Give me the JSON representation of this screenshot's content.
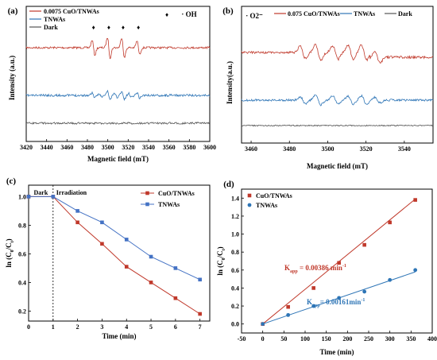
{
  "colors": {
    "red": "#c0392b",
    "blue": "#2e75b6",
    "gray": "#555555",
    "line_red": "#c0392b",
    "line_blue": "#4472c4"
  },
  "chart_data": [
    {
      "panel": "(a)",
      "type": "line",
      "xlabel": "Magnetic field (mT)",
      "ylabel": "Intensity (a.u.)",
      "xlim": [
        3420,
        3600
      ],
      "xticks": [
        3420,
        3440,
        3460,
        3480,
        3500,
        3520,
        3540,
        3560,
        3580,
        3600
      ],
      "annotation": "· OH",
      "peak_markers_x": [
        3486,
        3501,
        3515,
        3530
      ],
      "series": [
        {
          "name": "0.0075 CuO/TNWAs",
          "color": "#c0392b",
          "signal": "DMPO-·OH quartet, strong",
          "peaks_x": [
            3486,
            3501,
            3515,
            3530
          ]
        },
        {
          "name": "TNWAs",
          "color": "#2e75b6",
          "signal": "DMPO-·OH quartet, weak"
        },
        {
          "name": "Dark",
          "color": "#555555",
          "signal": "flat baseline"
        }
      ]
    },
    {
      "panel": "(b)",
      "type": "line",
      "xlabel": "Magnetic field (mT)",
      "ylabel": "Intensity(a.u.)",
      "xlim": [
        3455,
        3555
      ],
      "xticks": [
        3460,
        3480,
        3500,
        3520,
        3540
      ],
      "annotation": "· O2⁻",
      "series": [
        {
          "name": "0.075 CuO/TNWAs",
          "color": "#c0392b",
          "signal": "DMPO-·O2⁻ sextet, strong"
        },
        {
          "name": "TNWAs",
          "color": "#2e75b6",
          "signal": "DMPO-·O2⁻ sextet, weak"
        },
        {
          "name": "Dark",
          "color": "#555555",
          "signal": "flat baseline"
        }
      ]
    },
    {
      "panel": "(c)",
      "type": "line",
      "xlabel": "Time (min)",
      "ylabel": "ln (C0/Ct)",
      "xlim": [
        0,
        7.4
      ],
      "ylim": [
        0.13,
        1.08
      ],
      "xticks": [
        0,
        1,
        2,
        3,
        4,
        5,
        6,
        7
      ],
      "yticks": [
        0.2,
        0.4,
        0.6,
        0.8,
        1.0
      ],
      "region_labels": [
        "Dark",
        "Irradiation"
      ],
      "divider_x": 1,
      "legend": "top-right",
      "series": [
        {
          "name": "CuO/TNWAs",
          "color": "#c0392b",
          "marker": "square",
          "x": [
            0,
            1,
            2,
            3,
            4,
            5,
            6,
            7
          ],
          "y": [
            1.0,
            1.0,
            0.82,
            0.67,
            0.51,
            0.4,
            0.29,
            0.18
          ]
        },
        {
          "name": "TNWAs",
          "color": "#4472c4",
          "marker": "square",
          "x": [
            0,
            1,
            2,
            3,
            4,
            5,
            6,
            7
          ],
          "y": [
            1.0,
            1.0,
            0.9,
            0.82,
            0.7,
            0.58,
            0.5,
            0.42
          ]
        }
      ]
    },
    {
      "panel": "(d)",
      "type": "scatter",
      "xlabel": "Time (min)",
      "ylabel": "ln (C0/Ct)",
      "xlim": [
        -50,
        400
      ],
      "ylim": [
        -0.1,
        1.5
      ],
      "xticks": [
        -50,
        0,
        50,
        100,
        150,
        200,
        250,
        300,
        350,
        400
      ],
      "yticks": [
        0.0,
        0.2,
        0.4,
        0.6,
        0.8,
        1.0,
        1.2,
        1.4
      ],
      "legend": "top-left",
      "series": [
        {
          "name": "CuO/TNWAs",
          "color": "#c0392b",
          "marker": "square",
          "x": [
            0,
            60,
            120,
            180,
            240,
            300,
            360
          ],
          "y": [
            0.0,
            0.19,
            0.4,
            0.68,
            0.88,
            1.13,
            1.38
          ],
          "fit": {
            "slope": 0.00386,
            "intercept": 0.0
          },
          "fit_label": "K",
          "fit_label_sub": "app",
          "fit_label_value": " = 0.00386 min",
          "fit_label_sup": "-1"
        },
        {
          "name": "TNWAs",
          "color": "#2e75b6",
          "marker": "circle",
          "x": [
            0,
            60,
            120,
            180,
            240,
            300,
            360
          ],
          "y": [
            0.0,
            0.1,
            0.2,
            0.29,
            0.36,
            0.49,
            0.6
          ],
          "fit": {
            "slope": 0.00161,
            "intercept": 0.0
          },
          "fit_label": "K",
          "fit_label_sub": "app",
          "fit_label_value": "= 0.00161min",
          "fit_label_sup": "-1"
        }
      ]
    }
  ]
}
